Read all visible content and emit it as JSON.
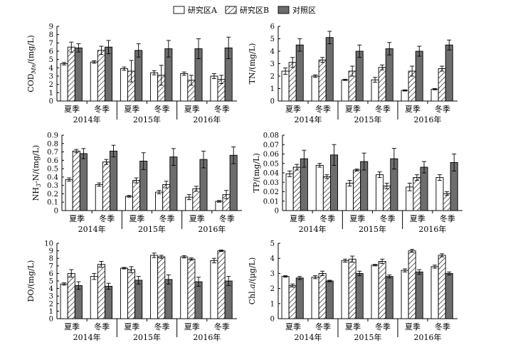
{
  "legend": {
    "items": [
      {
        "name": "研究区A",
        "pattern": "white"
      },
      {
        "name": "研究区B",
        "pattern": "hatch"
      },
      {
        "name": "对照区",
        "pattern": "gray"
      }
    ]
  },
  "colors": {
    "gray_fill": "#6d6d6d",
    "stroke": "#000000",
    "white_fill": "#ffffff"
  },
  "chart_data": [
    {
      "type": "bar",
      "id": "cod",
      "ylabel": "COD_Mn/(mg/L)",
      "ylabel_parts": {
        "main": "COD",
        "sub": "Mn",
        "tail": "/(mg/L)"
      },
      "ylim": [
        0,
        9
      ],
      "yticks": [
        0,
        1,
        2,
        3,
        4,
        5,
        6,
        7,
        8,
        9
      ],
      "categories": [
        "夏季",
        "冬季",
        "夏季",
        "冬季",
        "夏季",
        "冬季"
      ],
      "years": [
        "2014年",
        "2015年",
        "2016年"
      ],
      "series": [
        {
          "name": "研究区A",
          "values": [
            4.5,
            4.7,
            3.9,
            3.4,
            3.3,
            3.0
          ],
          "errors": [
            0.15,
            0.15,
            0.2,
            0.25,
            0.2,
            0.3
          ]
        },
        {
          "name": "研究区B",
          "values": [
            6.5,
            6.1,
            3.6,
            3.1,
            2.5,
            2.6
          ],
          "errors": [
            0.6,
            0.5,
            1.3,
            1.2,
            0.6,
            0.5
          ]
        },
        {
          "name": "对照区",
          "values": [
            6.4,
            6.5,
            6.1,
            6.3,
            6.3,
            6.4
          ],
          "errors": [
            0.5,
            0.8,
            0.8,
            1.0,
            1.2,
            1.3
          ]
        }
      ]
    },
    {
      "type": "bar",
      "id": "tn",
      "ylabel": "TN/(mg/L)",
      "ylim": [
        0,
        6
      ],
      "yticks": [
        0,
        1,
        2,
        3,
        4,
        5,
        6
      ],
      "categories": [
        "夏季",
        "冬季",
        "夏季",
        "冬季",
        "夏季",
        "冬季"
      ],
      "years": [
        "2014年",
        "2015年",
        "2016年"
      ],
      "series": [
        {
          "name": "研究区A",
          "values": [
            2.4,
            2.0,
            1.7,
            1.7,
            0.85,
            0.95
          ],
          "errors": [
            0.25,
            0.1,
            0.05,
            0.2,
            0.05,
            0.05
          ]
        },
        {
          "name": "研究区B",
          "values": [
            3.1,
            3.3,
            2.4,
            2.7,
            2.4,
            2.6
          ],
          "errors": [
            0.4,
            0.2,
            0.4,
            0.2,
            0.4,
            0.2
          ]
        },
        {
          "name": "对照区",
          "values": [
            4.5,
            5.1,
            4.0,
            4.2,
            4.0,
            4.5
          ],
          "errors": [
            0.5,
            0.5,
            0.5,
            0.5,
            0.4,
            0.4
          ]
        }
      ]
    },
    {
      "type": "bar",
      "id": "nh3n",
      "ylabel": "NH3-N/(mg/L)",
      "ylabel_parts": {
        "main": "NH",
        "sub": "3",
        "tail": "-N/(mg/L)"
      },
      "ylim": [
        0,
        0.9
      ],
      "yticks": [
        0,
        0.1,
        0.2,
        0.3,
        0.4,
        0.5,
        0.6,
        0.7,
        0.8,
        0.9
      ],
      "categories": [
        "夏季",
        "冬季",
        "夏季",
        "冬季",
        "夏季",
        "冬季"
      ],
      "years": [
        "2014年",
        "2015年",
        "2016年"
      ],
      "series": [
        {
          "name": "研究区A",
          "values": [
            0.37,
            0.31,
            0.17,
            0.22,
            0.16,
            0.11
          ],
          "errors": [
            0.02,
            0.02,
            0.01,
            0.02,
            0.03,
            0.01
          ]
        },
        {
          "name": "研究区B",
          "values": [
            0.71,
            0.58,
            0.36,
            0.31,
            0.26,
            0.19
          ],
          "errors": [
            0.02,
            0.03,
            0.03,
            0.04,
            0.03,
            0.05
          ]
        },
        {
          "name": "对照区",
          "values": [
            0.68,
            0.71,
            0.59,
            0.64,
            0.61,
            0.66
          ],
          "errors": [
            0.06,
            0.07,
            0.1,
            0.1,
            0.1,
            0.1
          ]
        }
      ]
    },
    {
      "type": "bar",
      "id": "tp",
      "ylabel": "TP/(mg/L)",
      "ylim": [
        0,
        0.08
      ],
      "yticks": [
        0,
        0.01,
        0.02,
        0.03,
        0.04,
        0.05,
        0.06,
        0.07,
        0.08
      ],
      "categories": [
        "夏季",
        "冬季",
        "夏季",
        "冬季",
        "夏季",
        "冬季"
      ],
      "years": [
        "2014年",
        "2015年",
        "2016年"
      ],
      "series": [
        {
          "name": "研究区A",
          "values": [
            0.039,
            0.048,
            0.029,
            0.038,
            0.025,
            0.035
          ],
          "errors": [
            0.003,
            0.002,
            0.003,
            0.003,
            0.004,
            0.003
          ]
        },
        {
          "name": "研究区B",
          "values": [
            0.046,
            0.036,
            0.043,
            0.026,
            0.035,
            0.018
          ],
          "errors": [
            0.003,
            0.002,
            0.001,
            0.003,
            0.003,
            0.002
          ]
        },
        {
          "name": "对照区",
          "values": [
            0.055,
            0.059,
            0.052,
            0.055,
            0.046,
            0.051
          ],
          "errors": [
            0.009,
            0.011,
            0.009,
            0.011,
            0.006,
            0.009
          ]
        }
      ]
    },
    {
      "type": "bar",
      "id": "do",
      "ylabel": "DO/(mg/L)",
      "ylim": [
        0,
        10
      ],
      "yticks": [
        0,
        1,
        2,
        3,
        4,
        5,
        6,
        7,
        8,
        9,
        10
      ],
      "categories": [
        "夏季",
        "冬季",
        "夏季",
        "冬季",
        "夏季",
        "冬季"
      ],
      "years": [
        "2014年",
        "2015年",
        "2016年"
      ],
      "series": [
        {
          "name": "研究区A",
          "values": [
            4.6,
            5.6,
            6.7,
            8.4,
            8.2,
            7.7
          ],
          "errors": [
            0.15,
            0.4,
            0.1,
            0.3,
            0.15,
            0.3
          ]
        },
        {
          "name": "研究区B",
          "values": [
            6.0,
            7.2,
            6.5,
            8.2,
            7.9,
            9.0
          ],
          "errors": [
            0.5,
            0.4,
            0.4,
            0.2,
            0.15,
            0.1
          ]
        },
        {
          "name": "对照区",
          "values": [
            4.4,
            4.3,
            5.1,
            5.2,
            4.9,
            5.0
          ],
          "errors": [
            0.5,
            0.4,
            0.5,
            0.6,
            0.6,
            0.6
          ]
        }
      ]
    },
    {
      "type": "bar",
      "id": "chla",
      "ylabel": "Chl.a/(μg/L)",
      "ylabel_parts": {
        "main": "Chl.",
        "italic": "a",
        "tail": "/(μg/L)"
      },
      "ylim": [
        0,
        5
      ],
      "yticks": [
        0,
        1,
        2,
        3,
        4,
        5
      ],
      "categories": [
        "夏季",
        "冬季",
        "夏季",
        "冬季",
        "夏季",
        "冬季"
      ],
      "years": [
        "2014年",
        "2015年",
        "2016年"
      ],
      "series": [
        {
          "name": "研究区A",
          "values": [
            2.8,
            2.75,
            3.85,
            3.55,
            3.2,
            3.45
          ],
          "errors": [
            0.05,
            0.1,
            0.1,
            0.05,
            0.1,
            0.1
          ]
        },
        {
          "name": "研究区B",
          "values": [
            2.2,
            3.0,
            3.95,
            3.8,
            4.5,
            4.2
          ],
          "errors": [
            0.1,
            0.15,
            0.2,
            0.15,
            0.1,
            0.1
          ]
        },
        {
          "name": "对照区",
          "values": [
            2.7,
            2.5,
            3.0,
            2.8,
            3.1,
            3.0
          ],
          "errors": [
            0.1,
            0.05,
            0.15,
            0.1,
            0.15,
            0.1
          ]
        }
      ]
    }
  ]
}
